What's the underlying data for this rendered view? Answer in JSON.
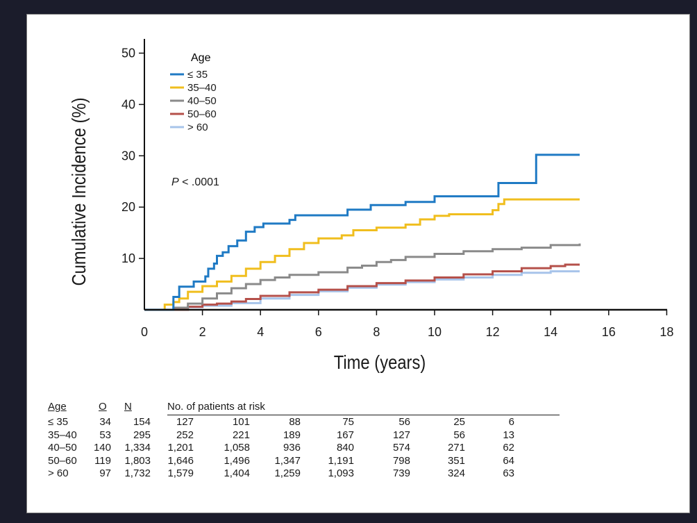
{
  "chart_data": {
    "type": "line",
    "title": "",
    "xlabel": "Time (years)",
    "ylabel": "Cumulative Incidence (%)",
    "xlim": [
      0,
      18.5
    ],
    "ylim": [
      0,
      52
    ],
    "x_ticks": [
      0,
      2,
      4,
      6,
      8,
      10,
      12,
      14,
      16,
      18
    ],
    "x_tick_labels": [
      "0",
      "2",
      "4",
      "6",
      "8",
      "10",
      "12",
      "14",
      "16",
      "18"
    ],
    "y_ticks": [
      10,
      20,
      30,
      40,
      50
    ],
    "y_tick_labels": [
      "10",
      "20",
      "30",
      "40",
      "50"
    ],
    "grid": false,
    "legend": {
      "title": "Age",
      "placement": "top-left"
    },
    "annotation_p": {
      "italic": "P",
      "rest": " < .0001"
    },
    "series": [
      {
        "name": "≤ 35",
        "color": "#1f7ac4",
        "points": [
          [
            0,
            0
          ],
          [
            0.9,
            0
          ],
          [
            1.0,
            2.5
          ],
          [
            1.2,
            4.5
          ],
          [
            1.6,
            4.5
          ],
          [
            1.7,
            5.5
          ],
          [
            2.0,
            5.5
          ],
          [
            2.1,
            6.5
          ],
          [
            2.2,
            8
          ],
          [
            2.4,
            9
          ],
          [
            2.5,
            10.5
          ],
          [
            2.7,
            11.2
          ],
          [
            2.9,
            12.4
          ],
          [
            3.2,
            13.5
          ],
          [
            3.5,
            15.2
          ],
          [
            3.8,
            16.1
          ],
          [
            4.1,
            16.8
          ],
          [
            4.8,
            16.8
          ],
          [
            5.0,
            17.5
          ],
          [
            5.2,
            18.4
          ],
          [
            6.8,
            18.4
          ],
          [
            7.0,
            19.5
          ],
          [
            7.5,
            19.5
          ],
          [
            7.8,
            20.4
          ],
          [
            9.0,
            21.0
          ],
          [
            9.9,
            21.0
          ],
          [
            10.0,
            22.1
          ],
          [
            12.1,
            22.1
          ],
          [
            12.2,
            24.7
          ],
          [
            13.4,
            24.7
          ],
          [
            13.5,
            30.2
          ],
          [
            15.0,
            30.2
          ]
        ]
      },
      {
        "name": "35–40",
        "color": "#f0be1e",
        "points": [
          [
            0,
            0
          ],
          [
            0.5,
            0
          ],
          [
            0.7,
            1
          ],
          [
            1.0,
            1.5
          ],
          [
            1.2,
            2.2
          ],
          [
            1.5,
            3.5
          ],
          [
            2.0,
            4.6
          ],
          [
            2.5,
            5.5
          ],
          [
            3.0,
            6.6
          ],
          [
            3.5,
            8.0
          ],
          [
            4.0,
            9.3
          ],
          [
            4.5,
            10.5
          ],
          [
            5.0,
            11.8
          ],
          [
            5.5,
            13.0
          ],
          [
            6.0,
            13.9
          ],
          [
            6.8,
            14.5
          ],
          [
            7.2,
            15.5
          ],
          [
            8.0,
            16.0
          ],
          [
            9.0,
            16.6
          ],
          [
            9.5,
            17.6
          ],
          [
            10.0,
            18.3
          ],
          [
            10.5,
            18.6
          ],
          [
            11.8,
            18.6
          ],
          [
            12.0,
            19.4
          ],
          [
            12.2,
            20.6
          ],
          [
            12.4,
            21.5
          ],
          [
            15.0,
            21.5
          ]
        ]
      },
      {
        "name": "40–50",
        "color": "#8a8a8a",
        "points": [
          [
            0,
            0
          ],
          [
            1.0,
            0.4
          ],
          [
            1.5,
            1.2
          ],
          [
            2.0,
            2.2
          ],
          [
            2.5,
            3.2
          ],
          [
            3.0,
            4.2
          ],
          [
            3.5,
            5.0
          ],
          [
            4.0,
            5.8
          ],
          [
            4.5,
            6.3
          ],
          [
            5.0,
            6.8
          ],
          [
            6.0,
            7.3
          ],
          [
            7.0,
            8.2
          ],
          [
            7.5,
            8.6
          ],
          [
            8.0,
            9.3
          ],
          [
            8.5,
            9.7
          ],
          [
            9.0,
            10.3
          ],
          [
            10.0,
            10.9
          ],
          [
            11.0,
            11.4
          ],
          [
            12.0,
            11.8
          ],
          [
            13.0,
            12.1
          ],
          [
            14.0,
            12.6
          ],
          [
            15.0,
            12.9
          ]
        ]
      },
      {
        "name": "50–60",
        "color": "#b5504a",
        "points": [
          [
            0,
            0
          ],
          [
            1.5,
            0.6
          ],
          [
            2.0,
            1.0
          ],
          [
            2.5,
            1.2
          ],
          [
            3.0,
            1.6
          ],
          [
            3.5,
            2.1
          ],
          [
            4.0,
            2.7
          ],
          [
            5.0,
            3.4
          ],
          [
            6.0,
            3.9
          ],
          [
            7.0,
            4.6
          ],
          [
            8.0,
            5.2
          ],
          [
            9.0,
            5.7
          ],
          [
            10.0,
            6.3
          ],
          [
            11.0,
            6.9
          ],
          [
            12.0,
            7.5
          ],
          [
            13.0,
            8.1
          ],
          [
            14.0,
            8.5
          ],
          [
            14.5,
            8.8
          ],
          [
            15.0,
            8.8
          ]
        ]
      },
      {
        "name": "> 60",
        "color": "#a7c4ea",
        "points": [
          [
            0,
            0
          ],
          [
            1.5,
            0.5
          ],
          [
            2.0,
            0.8
          ],
          [
            3.0,
            1.3
          ],
          [
            4.0,
            2.2
          ],
          [
            5.0,
            2.9
          ],
          [
            6.0,
            3.6
          ],
          [
            7.0,
            4.3
          ],
          [
            8.0,
            4.9
          ],
          [
            9.0,
            5.4
          ],
          [
            10.0,
            5.9
          ],
          [
            11.0,
            6.3
          ],
          [
            12.0,
            6.8
          ],
          [
            13.0,
            7.2
          ],
          [
            14.0,
            7.5
          ],
          [
            15.0,
            7.5
          ]
        ]
      }
    ]
  },
  "risk_table": {
    "headers": [
      "Age",
      "O",
      "N",
      "No. of patients at risk"
    ],
    "rows": [
      [
        "≤ 35",
        "34",
        "154",
        "127",
        "101",
        "88",
        "75",
        "56",
        "25",
        "6"
      ],
      [
        "35–40",
        "53",
        "295",
        "252",
        "221",
        "189",
        "167",
        "127",
        "56",
        "13"
      ],
      [
        "40–50",
        "140",
        "1,334",
        "1,201",
        "1,058",
        "936",
        "840",
        "574",
        "271",
        "62"
      ],
      [
        "50–60",
        "119",
        "1,803",
        "1,646",
        "1,496",
        "1,347",
        "1,191",
        "798",
        "351",
        "64"
      ],
      [
        "> 60",
        "97",
        "1,732",
        "1,579",
        "1,404",
        "1,259",
        "1,093",
        "739",
        "324",
        "63"
      ]
    ]
  }
}
